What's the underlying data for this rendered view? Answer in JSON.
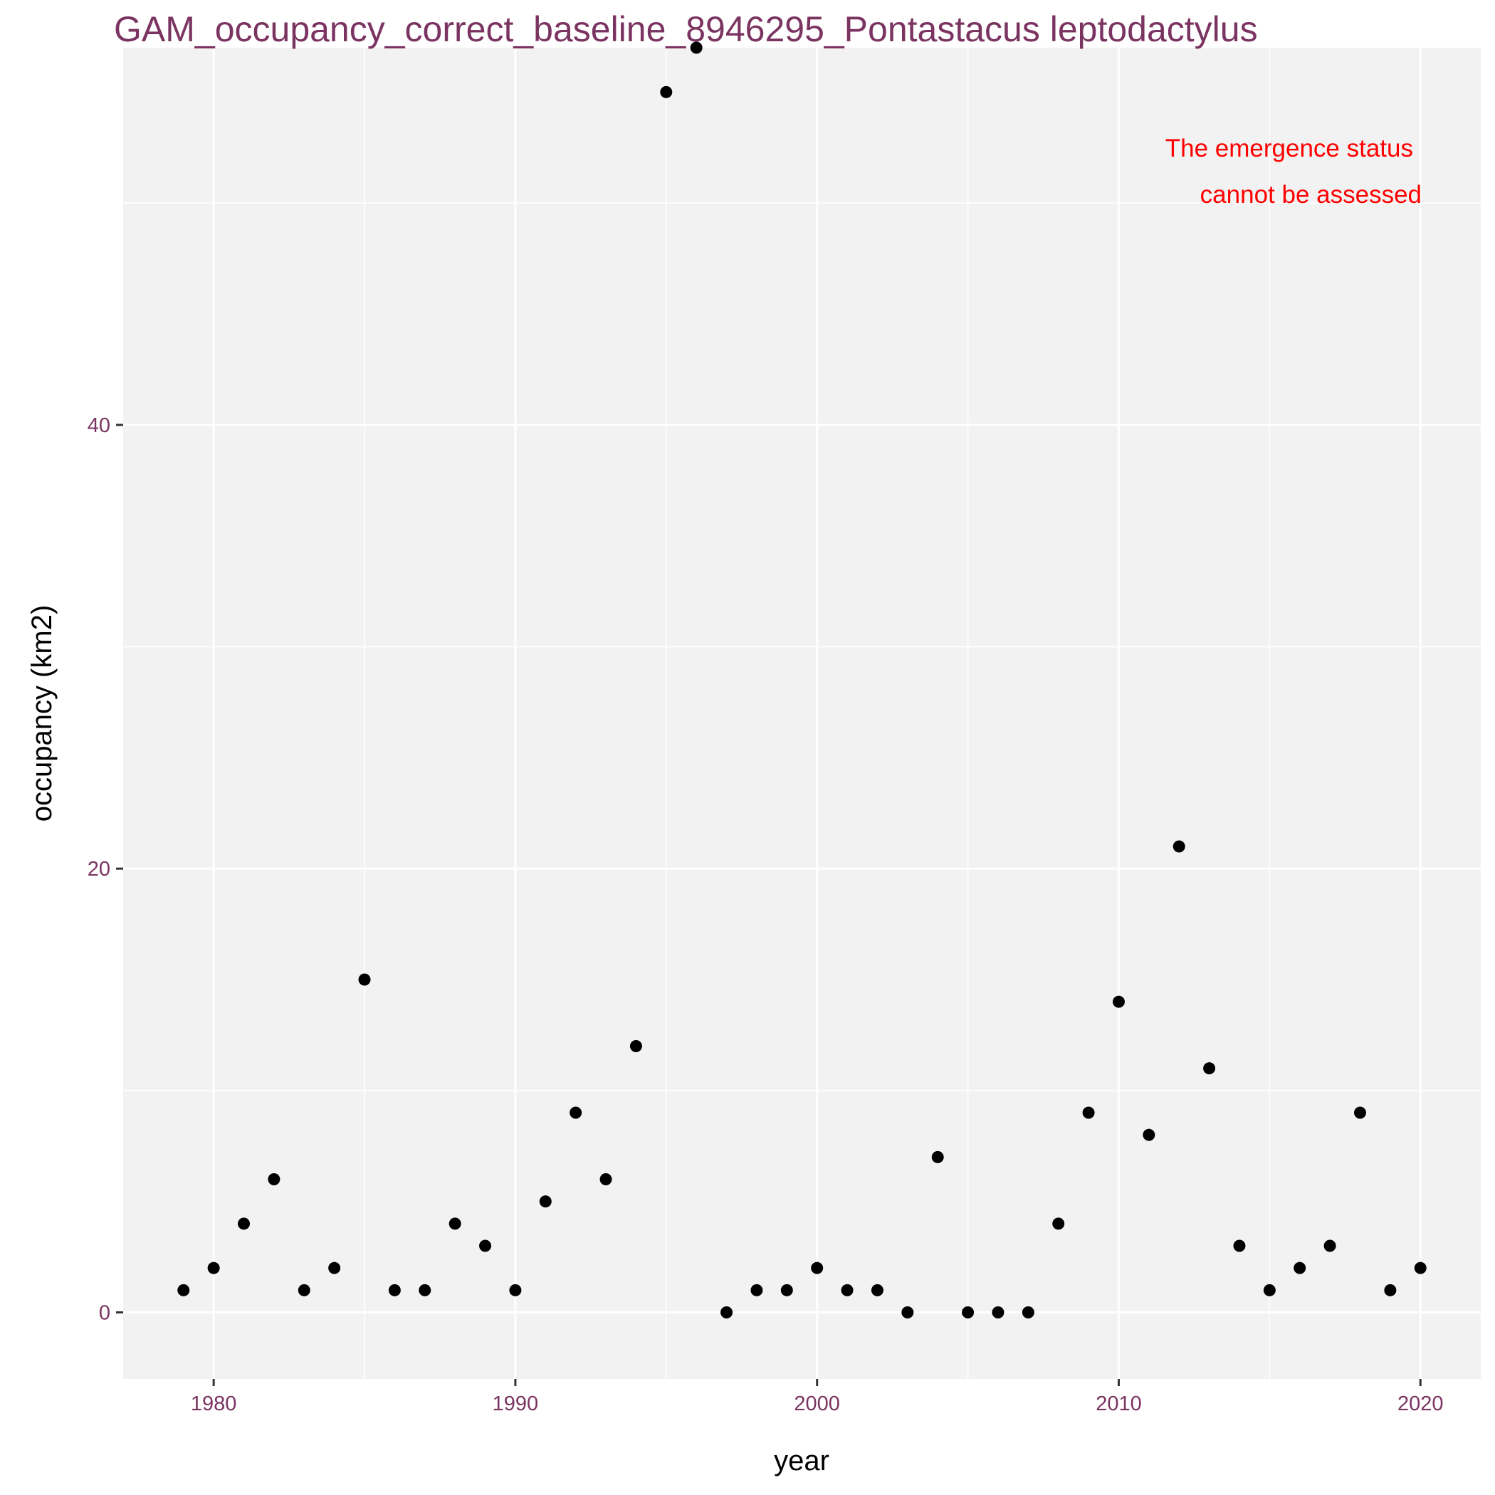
{
  "chart_data": {
    "type": "scatter",
    "title": "GAM_occupancy_correct_baseline_8946295_Pontastacus leptodactylus",
    "xlabel": "year",
    "ylabel": "occupancy (km2)",
    "xlim": [
      1977,
      2022
    ],
    "ylim": [
      -3,
      57
    ],
    "xticks": [
      1980,
      1990,
      2000,
      2010,
      2020
    ],
    "yticks": [
      0,
      20,
      40
    ],
    "grid": true,
    "annotation": [
      "The emergence status",
      "cannot be assessed"
    ],
    "series": [
      {
        "x": [
          1979,
          1980,
          1981,
          1982,
          1983,
          1984,
          1985,
          1986,
          1987,
          1988,
          1989,
          1990,
          1991,
          1992,
          1993,
          1994,
          1995,
          1996,
          1997,
          1998,
          1999,
          2000,
          2001,
          2002,
          2003,
          2004,
          2005,
          2006,
          2007,
          2008,
          2009,
          2010,
          2011,
          2012,
          2013,
          2014,
          2015,
          2016,
          2017,
          2018,
          2019,
          2020
        ],
        "y": [
          1,
          2,
          4,
          6,
          1,
          2,
          15,
          1,
          1,
          4,
          3,
          1,
          5,
          9,
          6,
          12,
          55,
          57,
          0,
          1,
          1,
          2,
          1,
          1,
          0,
          7,
          0,
          0,
          0,
          4,
          9,
          14,
          8,
          21,
          11,
          3,
          1,
          2,
          3,
          9,
          1,
          2
        ]
      }
    ],
    "colors": {
      "panel": "#f2f2f2",
      "grid": "#ffffff",
      "point": "#000000",
      "title": "#7b3461",
      "tick_label": "#7b3461",
      "annotation": "#ff0000"
    }
  }
}
